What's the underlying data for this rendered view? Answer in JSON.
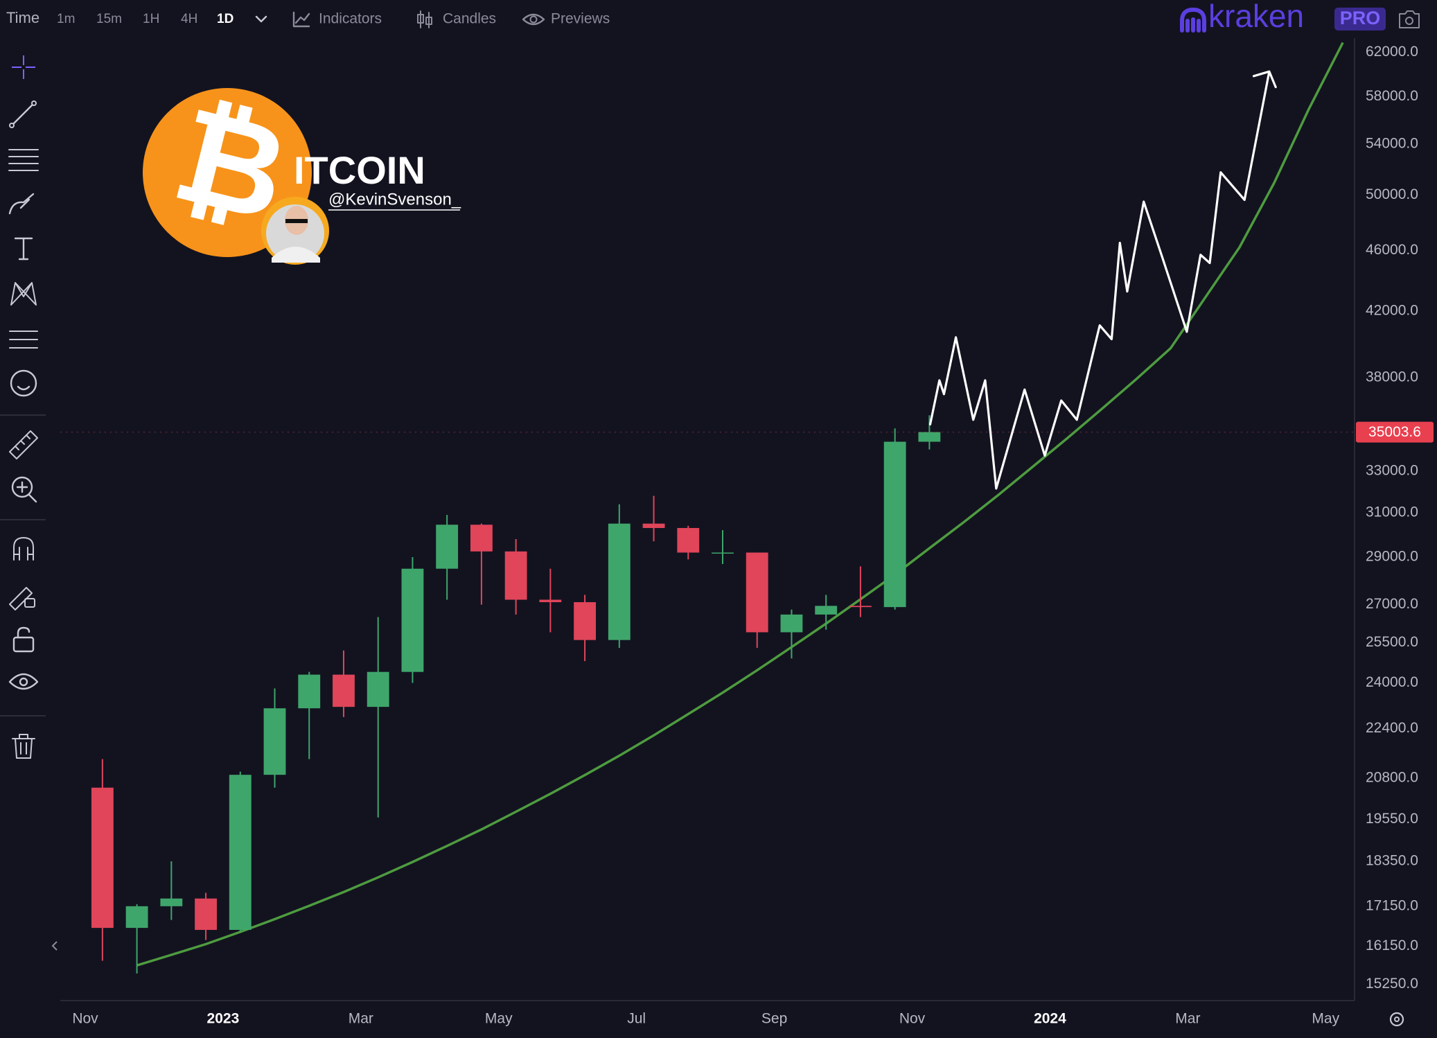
{
  "toolbar": {
    "time": "Time",
    "intervals": [
      "1m",
      "15m",
      "1H",
      "4H",
      "1D"
    ],
    "indicators": "Indicators",
    "candles": "Candles",
    "previews": "Previews"
  },
  "brand": {
    "name": "kraken",
    "tier": "PRO"
  },
  "logo": {
    "symbol": "₿",
    "word": "ITCOIN",
    "handle": "@KevinSvenson_"
  },
  "chart_data": {
    "type": "candlestick",
    "log_scale": true,
    "grid": false,
    "categories": [
      "Nov",
      null,
      null,
      null,
      "2023",
      null,
      null,
      null,
      "Mar",
      null,
      null,
      null,
      "May",
      null,
      null,
      null,
      "Jul",
      null,
      null,
      null,
      "Sep",
      null,
      null,
      null,
      "Nov",
      null,
      null,
      null,
      "2024",
      null,
      null,
      null,
      "Mar",
      null,
      null,
      null,
      "May"
    ],
    "up_color": "#3fa66b",
    "down_color": "#e0455a",
    "open": [
      20500,
      16600,
      17150,
      17350,
      16550,
      20900,
      23100,
      24300,
      23150,
      24400,
      28500,
      30450,
      29250,
      27200,
      27100,
      25600,
      30500,
      30300,
      29200,
      29200,
      25900,
      26600,
      26950,
      26900,
      34500,
      null,
      null,
      null,
      null,
      null,
      null,
      null,
      null,
      null,
      null,
      null,
      null
    ],
    "high": [
      21400,
      17200,
      18350,
      17500,
      21000,
      23800,
      24400,
      25200,
      26500,
      29000,
      30900,
      30500,
      29800,
      28500,
      27400,
      31400,
      31800,
      30400,
      30200,
      29200,
      26800,
      27400,
      28600,
      35200,
      35900,
      null,
      null,
      null,
      null,
      null,
      null,
      null,
      null,
      null,
      null,
      null,
      null
    ],
    "low": [
      15800,
      15500,
      16800,
      16300,
      16500,
      20500,
      21400,
      22800,
      19600,
      24000,
      27200,
      27000,
      26600,
      25900,
      24800,
      25300,
      29700,
      28900,
      28700,
      25300,
      24900,
      26000,
      26500,
      26800,
      34100,
      null,
      null,
      null,
      null,
      null,
      null,
      null,
      null,
      null,
      null,
      null,
      null
    ],
    "close": [
      16600,
      17150,
      17350,
      16550,
      20900,
      23100,
      24300,
      23150,
      24400,
      28500,
      30450,
      29250,
      27200,
      27100,
      25600,
      30500,
      30300,
      29200,
      29200,
      25900,
      26600,
      26950,
      26900,
      34500,
      35003.6,
      null,
      null,
      null,
      null,
      null,
      null,
      null,
      null,
      null,
      null,
      null,
      null
    ],
    "trend": {
      "color": "#4e9c3f",
      "values": [
        null,
        15690,
        15940,
        16200,
        16500,
        16820,
        17160,
        17520,
        17910,
        18330,
        18780,
        19250,
        19770,
        20310,
        20890,
        21510,
        22180,
        22900,
        23650,
        24460,
        25330,
        26240,
        27220,
        28250,
        29390,
        30570,
        31840,
        33230,
        34680,
        36240,
        37900,
        39710,
        42840,
        46230,
        50900,
        56840,
        62900
      ]
    },
    "last_price": {
      "value": 35003.6,
      "label": "35003.6",
      "color": "#e8404f"
    },
    "ylim": [
      14880,
      63030
    ],
    "yticks": [
      {
        "value": 62000,
        "label": "62000.0"
      },
      {
        "value": 58000,
        "label": "58000.0"
      },
      {
        "value": 54000,
        "label": "54000.0"
      },
      {
        "value": 50000,
        "label": "50000.0"
      },
      {
        "value": 46000,
        "label": "46000.0"
      },
      {
        "value": 42000,
        "label": "42000.0"
      },
      {
        "value": 38000,
        "label": "38000.0"
      },
      {
        "value": 33000,
        "label": "33000.0"
      },
      {
        "value": 31000,
        "label": "31000.0"
      },
      {
        "value": 29000,
        "label": "29000.0"
      },
      {
        "value": 27000,
        "label": "27000.0"
      },
      {
        "value": 25500,
        "label": "25500.0"
      },
      {
        "value": 24000,
        "label": "24000.0"
      },
      {
        "value": 22400,
        "label": "22400.0"
      },
      {
        "value": 20800,
        "label": "20800.0"
      },
      {
        "value": 19550,
        "label": "19550.0"
      },
      {
        "value": 18350,
        "label": "18350.0"
      },
      {
        "value": 17150,
        "label": "17150.0"
      },
      {
        "value": 16150,
        "label": "16150.0"
      },
      {
        "value": 15250,
        "label": "15250.0"
      }
    ]
  }
}
